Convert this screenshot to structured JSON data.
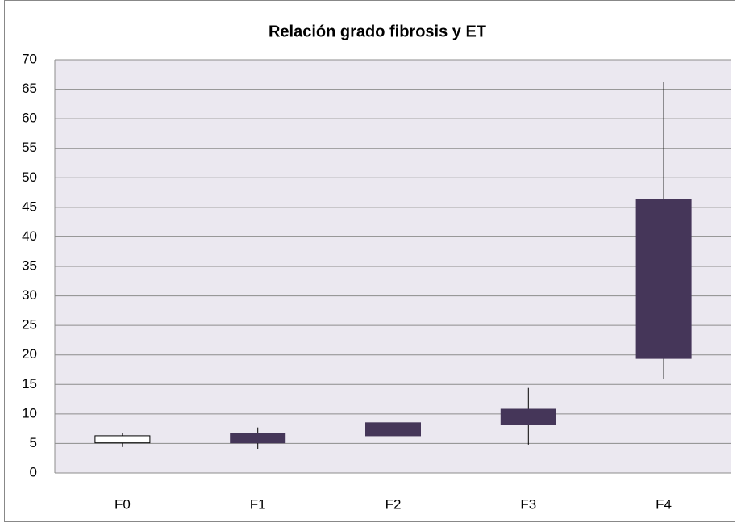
{
  "chart_data": {
    "type": "candlestick",
    "title": "Relación  grado fibrosis y ET",
    "categories": [
      "F0",
      "F1",
      "F2",
      "F3",
      "F4"
    ],
    "open": [
      5.1,
      6.7,
      8.5,
      10.8,
      46.3
    ],
    "high": [
      6.7,
      7.7,
      13.9,
      14.4,
      66.3
    ],
    "low": [
      4.4,
      4.1,
      4.8,
      4.8,
      16.0
    ],
    "close": [
      6.3,
      5.1,
      6.3,
      8.2,
      19.4
    ],
    "up_color": "#ffffff",
    "down_color": "#453659",
    "background": "#ebe8f0",
    "ylim": [
      0,
      70
    ],
    "yticks": [
      0,
      5,
      10,
      15,
      20,
      25,
      30,
      35,
      40,
      45,
      50,
      55,
      60,
      65,
      70
    ],
    "grid": true
  }
}
